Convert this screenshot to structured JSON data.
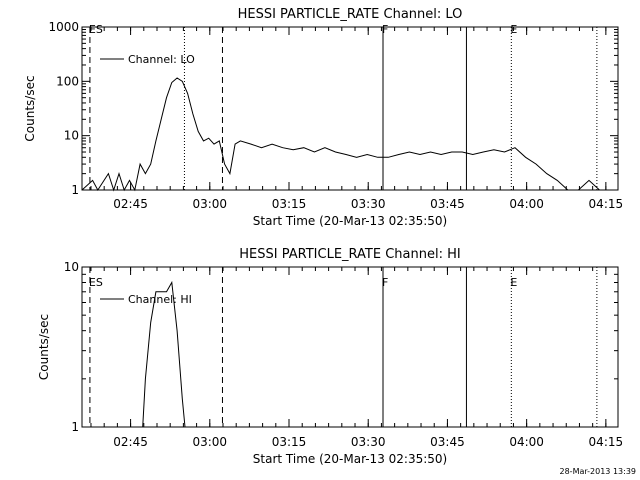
{
  "footer_timestamp": "28-Mar-2013 13:39",
  "colors": {
    "line": "#000000",
    "background": "#ffffff"
  },
  "chart_data": [
    {
      "type": "line",
      "title": "HESSI PARTICLE_RATE Channel: LO",
      "xlabel": "Start Time (20-Mar-13 02:35:50)",
      "ylabel": "Counts/sec",
      "yscale": "log",
      "ylim": [
        1,
        1000
      ],
      "xlim_min": [
        0,
        101.5
      ],
      "x_ticks": [
        "02:45",
        "03:00",
        "03:15",
        "03:30",
        "03:45",
        "04:00",
        "04:15"
      ],
      "y_ticks": [
        "1",
        "10",
        "100",
        "1000"
      ],
      "legend": {
        "label": "Channel: LO",
        "placement": "top-left"
      },
      "markers": [
        {
          "label": "ES",
          "x": 1.5,
          "style": "dashed"
        },
        {
          "label": "",
          "x": 19.4,
          "style": "dotted"
        },
        {
          "label": "",
          "x": 26.6,
          "style": "dashed"
        },
        {
          "label": "F",
          "x": 57.0,
          "style": "solid"
        },
        {
          "label": "",
          "x": 72.8,
          "style": "solid"
        },
        {
          "label": "E",
          "x": 81.3,
          "style": "dotted"
        },
        {
          "label": "",
          "x": 97.5,
          "style": "dotted"
        }
      ],
      "series": [
        {
          "name": "Channel: LO",
          "x": [
            0,
            2,
            3,
            5,
            6,
            7,
            8,
            9,
            10,
            11,
            12,
            13,
            14,
            15,
            16,
            17,
            18,
            19,
            20,
            21,
            22,
            23,
            24,
            25,
            26,
            27,
            28,
            29,
            30,
            32,
            34,
            36,
            38,
            40,
            42,
            44,
            46,
            48,
            50,
            52,
            54,
            56,
            58,
            60,
            62,
            64,
            66,
            68,
            70,
            72,
            74,
            76,
            78,
            80,
            82,
            84,
            86,
            88,
            90,
            92,
            94,
            96,
            98,
            100
          ],
          "values": [
            1,
            1.5,
            1,
            2,
            1,
            2,
            1,
            1.5,
            1,
            3,
            2,
            3,
            8,
            20,
            50,
            95,
            115,
            100,
            60,
            25,
            12,
            8,
            9,
            7,
            8,
            3,
            2,
            7,
            8,
            7,
            6,
            7,
            6,
            5.5,
            6,
            5,
            6,
            5,
            4.5,
            4,
            4.5,
            4,
            4,
            4.5,
            5,
            4.5,
            5,
            4.5,
            5,
            5,
            4.5,
            5,
            5.5,
            5,
            6,
            4,
            3,
            2,
            1.5,
            1,
            1,
            1.5,
            1,
            1
          ]
        }
      ]
    },
    {
      "type": "line",
      "title": "HESSI PARTICLE_RATE Channel: HI",
      "xlabel": "Start Time (20-Mar-13 02:35:50)",
      "ylabel": "Counts/sec",
      "yscale": "log",
      "ylim": [
        1,
        10
      ],
      "xlim_min": [
        0,
        101.5
      ],
      "x_ticks": [
        "02:45",
        "03:00",
        "03:15",
        "03:30",
        "03:45",
        "04:00",
        "04:15"
      ],
      "y_ticks": [
        "1",
        "10"
      ],
      "legend": {
        "label": "Channel: HI",
        "placement": "top-left"
      },
      "markers": [
        {
          "label": "ES",
          "x": 1.5,
          "style": "dashed"
        },
        {
          "label": "",
          "x": 26.6,
          "style": "dashed"
        },
        {
          "label": "F",
          "x": 57.0,
          "style": "solid"
        },
        {
          "label": "",
          "x": 72.8,
          "style": "solid"
        },
        {
          "label": "E",
          "x": 81.3,
          "style": "dotted"
        },
        {
          "label": "",
          "x": 97.5,
          "style": "dotted"
        }
      ],
      "series": [
        {
          "name": "Channel: HI",
          "x": [
            11.5,
            12,
            13,
            14,
            15,
            16,
            17,
            18,
            19,
            19.5
          ],
          "values": [
            1,
            2,
            4.5,
            7,
            7,
            7,
            8,
            4,
            1.5,
            1
          ]
        }
      ]
    }
  ]
}
